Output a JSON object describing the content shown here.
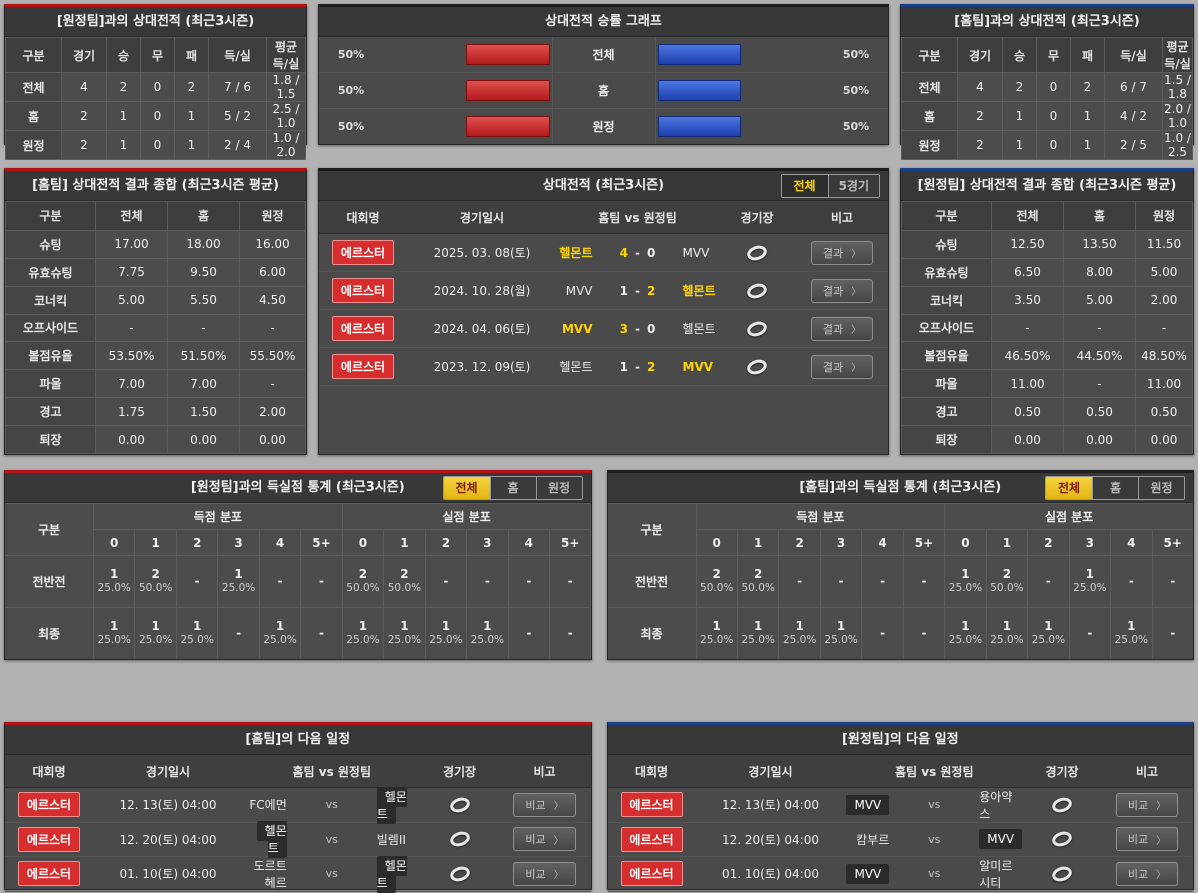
{
  "colors": {
    "accent_red": "#b01216",
    "accent_blue": "#1c3e83",
    "bar_red": "#c12020",
    "bar_blue": "#2a52c9",
    "highlight_yellow": "#ffd400",
    "badge_red": "#d62e2e"
  },
  "buttons": {
    "result": "결과",
    "compare": "비교",
    "chevron": "〉"
  },
  "vs_label": "vs",
  "list_headers": {
    "league": "대회명",
    "datetime": "경기일시",
    "teams": "홈팀  vs  원정팀",
    "stadium": "경기장",
    "note": "비고"
  },
  "record_away": {
    "title": "[원정팀]과의 상대전적 (최근3시즌)",
    "headers": [
      "구분",
      "경기",
      "승",
      "무",
      "패",
      "득/실",
      "평균 득/실"
    ],
    "rows": [
      {
        "label": "전체",
        "cells": [
          "4",
          "2",
          "0",
          "2",
          "7 / 6",
          "1.8 / 1.5"
        ]
      },
      {
        "label": "홈",
        "cells": [
          "2",
          "1",
          "0",
          "1",
          "5 / 2",
          "2.5 / 1.0"
        ]
      },
      {
        "label": "원정",
        "cells": [
          "2",
          "1",
          "0",
          "1",
          "2 / 4",
          "1.0 / 2.0"
        ]
      }
    ]
  },
  "record_home": {
    "title": "[홈팀]과의 상대전적 (최근3시즌)",
    "headers": [
      "구분",
      "경기",
      "승",
      "무",
      "패",
      "득/실",
      "평균 득/실"
    ],
    "rows": [
      {
        "label": "전체",
        "cells": [
          "4",
          "2",
          "0",
          "2",
          "6 / 7",
          "1.5 / 1.8"
        ]
      },
      {
        "label": "홈",
        "cells": [
          "2",
          "1",
          "0",
          "1",
          "4 / 2",
          "2.0 / 1.0"
        ]
      },
      {
        "label": "원정",
        "cells": [
          "2",
          "1",
          "0",
          "1",
          "2 / 5",
          "1.0 / 2.5"
        ]
      }
    ]
  },
  "win_chart": {
    "title": "상대전적 승률 그래프",
    "type": "bar",
    "categories": [
      "전체",
      "홈",
      "원정"
    ],
    "series": [
      {
        "name": "home-win-rate",
        "values": [
          50,
          50,
          50
        ]
      },
      {
        "name": "away-win-rate",
        "values": [
          50,
          50,
          50
        ]
      }
    ],
    "rows": [
      {
        "label": "전체",
        "left_pct": "50%",
        "left_value": 50,
        "right_pct": "50%",
        "right_value": 50
      },
      {
        "label": "홈",
        "left_pct": "50%",
        "left_value": 50,
        "right_pct": "50%",
        "right_value": 50
      },
      {
        "label": "원정",
        "left_pct": "50%",
        "left_value": 50,
        "right_pct": "50%",
        "right_value": 50
      }
    ]
  },
  "summary_home": {
    "title": "[홈팀] 상대전적 결과 종합 (최근3시즌 평균)",
    "headers": [
      "구분",
      "전체",
      "홈",
      "원정"
    ],
    "rows": [
      {
        "label": "슈팅",
        "cells": [
          "17.00",
          "18.00",
          "16.00"
        ]
      },
      {
        "label": "유효슈팅",
        "cells": [
          "7.75",
          "9.50",
          "6.00"
        ]
      },
      {
        "label": "코너킥",
        "cells": [
          "5.00",
          "5.50",
          "4.50"
        ]
      },
      {
        "label": "오프사이드",
        "cells": [
          "-",
          "-",
          "-"
        ]
      },
      {
        "label": "볼점유율",
        "cells": [
          "53.50%",
          "51.50%",
          "55.50%"
        ]
      },
      {
        "label": "파울",
        "cells": [
          "7.00",
          "7.00",
          "-"
        ]
      },
      {
        "label": "경고",
        "cells": [
          "1.75",
          "1.50",
          "2.00"
        ]
      },
      {
        "label": "퇴장",
        "cells": [
          "0.00",
          "0.00",
          "0.00"
        ]
      }
    ]
  },
  "summary_away": {
    "title": "[원정팀] 상대전적 결과 종합 (최근3시즌 평균)",
    "headers": [
      "구분",
      "전체",
      "홈",
      "원정"
    ],
    "rows": [
      {
        "label": "슈팅",
        "cells": [
          "12.50",
          "13.50",
          "11.50"
        ]
      },
      {
        "label": "유효슈팅",
        "cells": [
          "6.50",
          "8.00",
          "5.00"
        ]
      },
      {
        "label": "코너킥",
        "cells": [
          "3.50",
          "5.00",
          "2.00"
        ]
      },
      {
        "label": "오프사이드",
        "cells": [
          "-",
          "-",
          "-"
        ]
      },
      {
        "label": "볼점유율",
        "cells": [
          "46.50%",
          "44.50%",
          "48.50%"
        ]
      },
      {
        "label": "파울",
        "cells": [
          "11.00",
          "-",
          "11.00"
        ]
      },
      {
        "label": "경고",
        "cells": [
          "0.50",
          "0.50",
          "0.50"
        ]
      },
      {
        "label": "퇴장",
        "cells": [
          "0.00",
          "0.00",
          "0.00"
        ]
      }
    ]
  },
  "h2h": {
    "title": "상대전적 (최근3시즌)",
    "tabs": [
      {
        "label": "전체",
        "active": true
      },
      {
        "label": "5경기",
        "active": false
      }
    ],
    "matches": [
      {
        "league": "에르스터",
        "date": "2025. 03. 08(토)",
        "home": "헬몬트",
        "home_win": true,
        "score_home": "4",
        "score_away": "0",
        "away": "MVV",
        "away_win": false
      },
      {
        "league": "에르스터",
        "date": "2024. 10. 28(월)",
        "home": "MVV",
        "home_win": false,
        "score_home": "1",
        "score_away": "2",
        "away": "헬몬트",
        "away_win": true
      },
      {
        "league": "에르스터",
        "date": "2024. 04. 06(토)",
        "home": "MVV",
        "home_win": true,
        "score_home": "3",
        "score_away": "0",
        "away": "헬몬트",
        "away_win": false
      },
      {
        "league": "에르스터",
        "date": "2023. 12. 09(토)",
        "home": "헬몬트",
        "home_win": false,
        "score_home": "1",
        "score_away": "2",
        "away": "MVV",
        "away_win": true
      }
    ]
  },
  "goals_away": {
    "title": "[원정팀]과의 득실점 통계 (최근3시즌)",
    "tabs": [
      {
        "label": "전체",
        "active": true
      },
      {
        "label": "홈",
        "active": false
      },
      {
        "label": "원정",
        "active": false
      }
    ],
    "corner_label": "구분",
    "scored_label": "득점 분포",
    "conceded_label": "실점 분포",
    "bins": [
      "0",
      "1",
      "2",
      "3",
      "4",
      "5+"
    ],
    "rows": [
      {
        "label": "전반전",
        "scored": [
          {
            "n": "1",
            "p": "25.0%"
          },
          {
            "n": "2",
            "p": "50.0%"
          },
          {
            "n": "-",
            "p": ""
          },
          {
            "n": "1",
            "p": "25.0%"
          },
          {
            "n": "-",
            "p": ""
          },
          {
            "n": "-",
            "p": ""
          }
        ],
        "conceded": [
          {
            "n": "2",
            "p": "50.0%"
          },
          {
            "n": "2",
            "p": "50.0%"
          },
          {
            "n": "-",
            "p": ""
          },
          {
            "n": "-",
            "p": ""
          },
          {
            "n": "-",
            "p": ""
          },
          {
            "n": "-",
            "p": ""
          }
        ]
      },
      {
        "label": "최종",
        "scored": [
          {
            "n": "1",
            "p": "25.0%"
          },
          {
            "n": "1",
            "p": "25.0%"
          },
          {
            "n": "1",
            "p": "25.0%"
          },
          {
            "n": "-",
            "p": ""
          },
          {
            "n": "1",
            "p": "25.0%"
          },
          {
            "n": "-",
            "p": ""
          }
        ],
        "conceded": [
          {
            "n": "1",
            "p": "25.0%"
          },
          {
            "n": "1",
            "p": "25.0%"
          },
          {
            "n": "1",
            "p": "25.0%"
          },
          {
            "n": "1",
            "p": "25.0%"
          },
          {
            "n": "-",
            "p": ""
          },
          {
            "n": "-",
            "p": ""
          }
        ]
      }
    ]
  },
  "goals_home": {
    "title": "[홈팀]과의 득실점 통계 (최근3시즌)",
    "tabs": [
      {
        "label": "전체",
        "active": true
      },
      {
        "label": "홈",
        "active": false
      },
      {
        "label": "원정",
        "active": false
      }
    ],
    "corner_label": "구분",
    "scored_label": "득점 분포",
    "conceded_label": "실점 분포",
    "bins": [
      "0",
      "1",
      "2",
      "3",
      "4",
      "5+"
    ],
    "rows": [
      {
        "label": "전반전",
        "scored": [
          {
            "n": "2",
            "p": "50.0%"
          },
          {
            "n": "2",
            "p": "50.0%"
          },
          {
            "n": "-",
            "p": ""
          },
          {
            "n": "-",
            "p": ""
          },
          {
            "n": "-",
            "p": ""
          },
          {
            "n": "-",
            "p": ""
          }
        ],
        "conceded": [
          {
            "n": "1",
            "p": "25.0%"
          },
          {
            "n": "2",
            "p": "50.0%"
          },
          {
            "n": "-",
            "p": ""
          },
          {
            "n": "1",
            "p": "25.0%"
          },
          {
            "n": "-",
            "p": ""
          },
          {
            "n": "-",
            "p": ""
          }
        ]
      },
      {
        "label": "최종",
        "scored": [
          {
            "n": "1",
            "p": "25.0%"
          },
          {
            "n": "1",
            "p": "25.0%"
          },
          {
            "n": "1",
            "p": "25.0%"
          },
          {
            "n": "1",
            "p": "25.0%"
          },
          {
            "n": "-",
            "p": ""
          },
          {
            "n": "-",
            "p": ""
          }
        ],
        "conceded": [
          {
            "n": "1",
            "p": "25.0%"
          },
          {
            "n": "1",
            "p": "25.0%"
          },
          {
            "n": "1",
            "p": "25.0%"
          },
          {
            "n": "-",
            "p": ""
          },
          {
            "n": "1",
            "p": "25.0%"
          },
          {
            "n": "-",
            "p": ""
          }
        ]
      }
    ]
  },
  "next_home": {
    "title": "[홈팀]의 다음 일정",
    "rows": [
      {
        "league": "에르스터",
        "date": "12. 13(토) 04:00",
        "home": "FC에먼",
        "home_hl": false,
        "away": "헬몬트",
        "away_hl": true
      },
      {
        "league": "에르스터",
        "date": "12. 20(토) 04:00",
        "home": "헬몬트",
        "home_hl": true,
        "away": "빌렘II",
        "away_hl": false
      },
      {
        "league": "에르스터",
        "date": "01. 10(토) 04:00",
        "home": "도르트헤르",
        "home_hl": false,
        "away": "헬몬트",
        "away_hl": true
      }
    ]
  },
  "next_away": {
    "title": "[원정팀]의 다음 일정",
    "rows": [
      {
        "league": "에르스터",
        "date": "12. 13(토) 04:00",
        "home": "MVV",
        "home_hl": true,
        "away": "용아약스",
        "away_hl": false
      },
      {
        "league": "에르스터",
        "date": "12. 20(토) 04:00",
        "home": "캄부르",
        "home_hl": false,
        "away": "MVV",
        "away_hl": true
      },
      {
        "league": "에르스터",
        "date": "01. 10(토) 04:00",
        "home": "MVV",
        "home_hl": true,
        "away": "알미르시티",
        "away_hl": false
      }
    ]
  }
}
